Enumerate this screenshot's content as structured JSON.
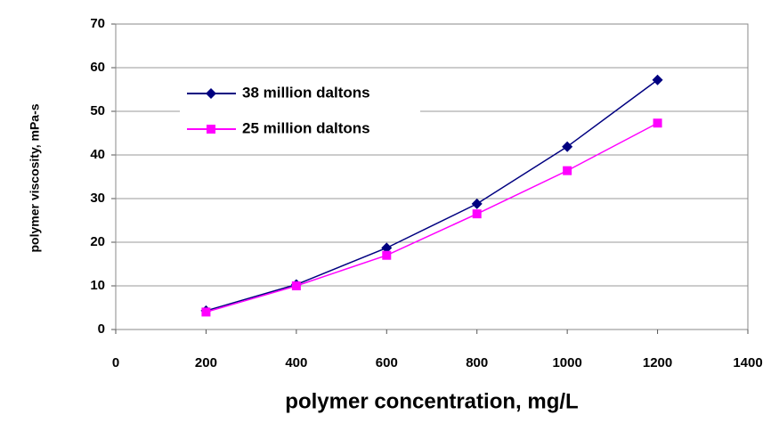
{
  "chart_data": {
    "type": "line",
    "xlabel": "polymer concentration, mg/L",
    "ylabel": "polymer viscosity, mPa-s",
    "x": [
      200,
      400,
      600,
      800,
      1000,
      1200
    ],
    "series": [
      {
        "name": "38 million daltons",
        "color": "#000080",
        "marker": "diamond",
        "values": [
          4.3,
          10.3,
          18.7,
          28.8,
          41.9,
          57.2
        ]
      },
      {
        "name": "25 million daltons",
        "color": "#ff00ff",
        "marker": "square",
        "values": [
          4.0,
          10.0,
          17.0,
          26.5,
          36.4,
          47.3
        ]
      }
    ],
    "xlim": [
      0,
      1400
    ],
    "xticks": [
      0,
      200,
      400,
      600,
      800,
      1000,
      1200,
      1400
    ],
    "ylim": [
      0,
      70
    ],
    "yticks": [
      0,
      10,
      20,
      30,
      40,
      50,
      60,
      70
    ],
    "grid": true,
    "legend": "upper left"
  }
}
